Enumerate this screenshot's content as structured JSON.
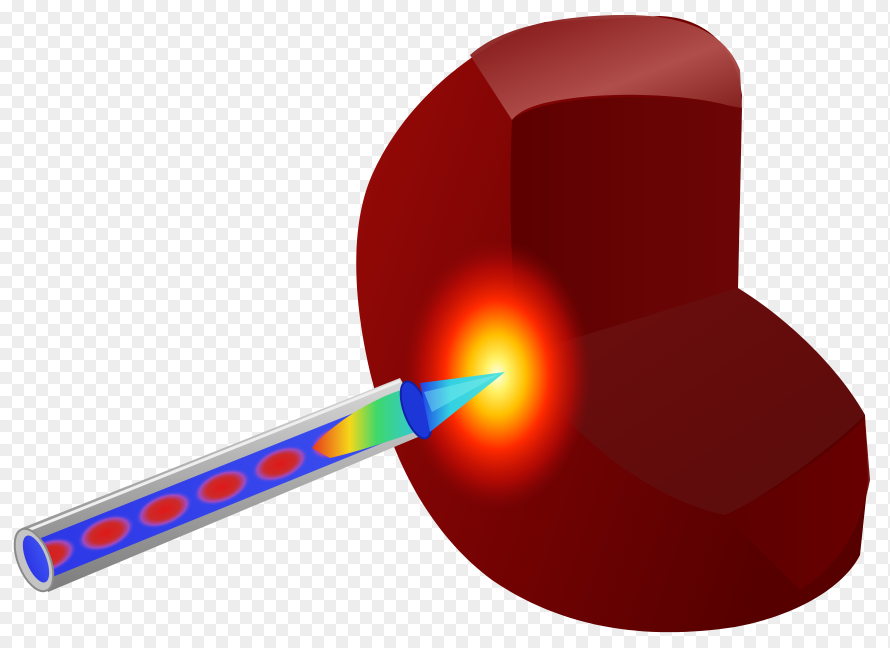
{
  "image": {
    "kind": "3d-simulation-render",
    "background": "transparent-checkerboard",
    "colors": {
      "domain_dark": "#5c0000",
      "domain_mid": "#8e0707",
      "domain_face_lit": "#a3312d",
      "hotspot_core": "#ffffe0",
      "hotspot_yellow": "#ffee00",
      "hotspot_red": "#ff1a00",
      "waveguide_metal": "#b9b9b9",
      "field_low": "#2e3ff0",
      "field_high": "#d82020",
      "tip_cyan": "#33d8e0"
    }
  }
}
